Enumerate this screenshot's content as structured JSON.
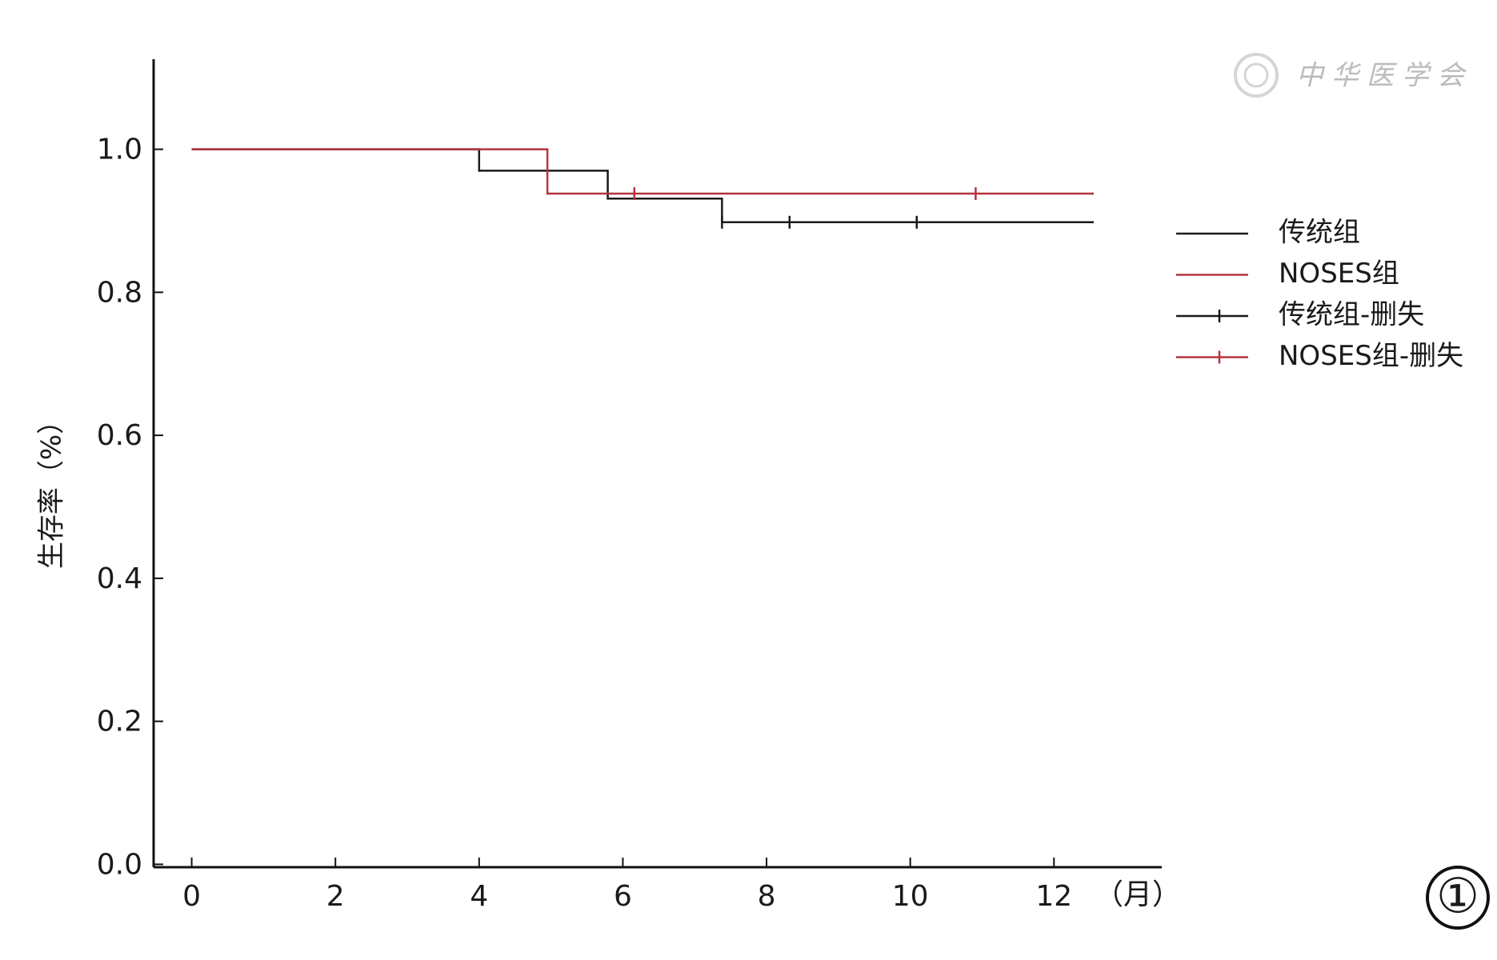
{
  "chart_data": {
    "type": "km-step",
    "y_label": "生存率（%）",
    "x_unit_label": "（月）",
    "watermark": "中华医学会",
    "panel_label": "①",
    "xlim": [
      -0.53,
      13.5
    ],
    "xticks": [
      0,
      2,
      4,
      6,
      8,
      10,
      12
    ],
    "ylim": [
      -0.004,
      1.126
    ],
    "yticks": [
      {
        "value": 0,
        "label": "0.0"
      },
      0.2,
      0.4,
      0.6,
      0.8,
      {
        "value": 1,
        "label": "1.0"
      }
    ],
    "series": [
      {
        "name": "传统组",
        "color": "#1a1a1a",
        "kind": "step",
        "x": [
          0,
          4.0,
          5.79,
          7.38,
          12.54
        ],
        "values": [
          1.0,
          0.97,
          0.931,
          0.898,
          0.898
        ]
      },
      {
        "name": "NOSES组",
        "color": "#b5333f",
        "kind": "step",
        "x": [
          0,
          4.95,
          12.54
        ],
        "values": [
          1.0,
          0.938,
          0.938
        ]
      },
      {
        "name": "传统组-删失",
        "color": "#1a1a1a",
        "kind": "censor",
        "x": [
          7.38,
          8.32,
          10.09
        ],
        "values": [
          0.898,
          0.898,
          0.898
        ]
      },
      {
        "name": "NOSES组-删失",
        "color": "#b5333f",
        "kind": "censor",
        "x": [
          6.16,
          10.91
        ],
        "values": [
          0.938,
          0.938
        ]
      }
    ]
  }
}
